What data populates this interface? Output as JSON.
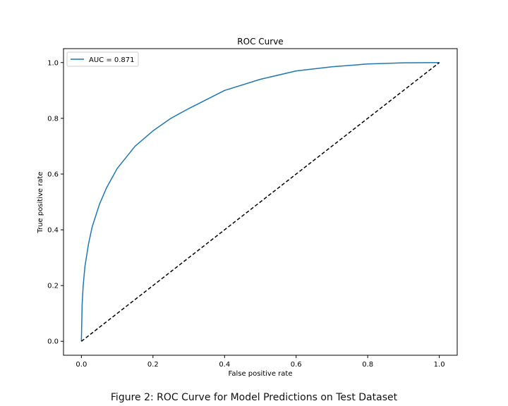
{
  "chart_data": {
    "type": "line",
    "title": "ROC Curve",
    "xlabel": "False positive rate",
    "ylabel": "True positive rate",
    "xlim": [
      -0.05,
      1.05
    ],
    "ylim": [
      -0.05,
      1.05
    ],
    "x_ticks": [
      0.0,
      0.2,
      0.4,
      0.6,
      0.8,
      1.0
    ],
    "x_tick_labels": [
      "0.0",
      "0.2",
      "0.4",
      "0.6",
      "0.8",
      "1.0"
    ],
    "y_ticks": [
      0.0,
      0.2,
      0.4,
      0.6,
      0.8,
      1.0
    ],
    "y_tick_labels": [
      "0.0",
      "0.2",
      "0.4",
      "0.6",
      "0.8",
      "1.0"
    ],
    "grid": false,
    "legend_position": "top-left",
    "series": [
      {
        "name": "AUC = 0.871",
        "color": "#1f77b4",
        "style": "solid",
        "x": [
          0.0,
          0.002,
          0.005,
          0.01,
          0.02,
          0.03,
          0.05,
          0.07,
          0.1,
          0.15,
          0.2,
          0.25,
          0.3,
          0.4,
          0.5,
          0.6,
          0.7,
          0.8,
          0.9,
          1.0
        ],
        "y": [
          0.0,
          0.13,
          0.2,
          0.27,
          0.35,
          0.41,
          0.49,
          0.55,
          0.62,
          0.7,
          0.755,
          0.8,
          0.835,
          0.9,
          0.94,
          0.97,
          0.985,
          0.995,
          0.999,
          1.0
        ]
      },
      {
        "color": "#000000",
        "style": "dashed",
        "x": [
          0.0,
          1.0
        ],
        "y": [
          0.0,
          1.0
        ]
      }
    ]
  },
  "caption": "Figure 2: ROC Curve for Model Predictions on Test Dataset"
}
